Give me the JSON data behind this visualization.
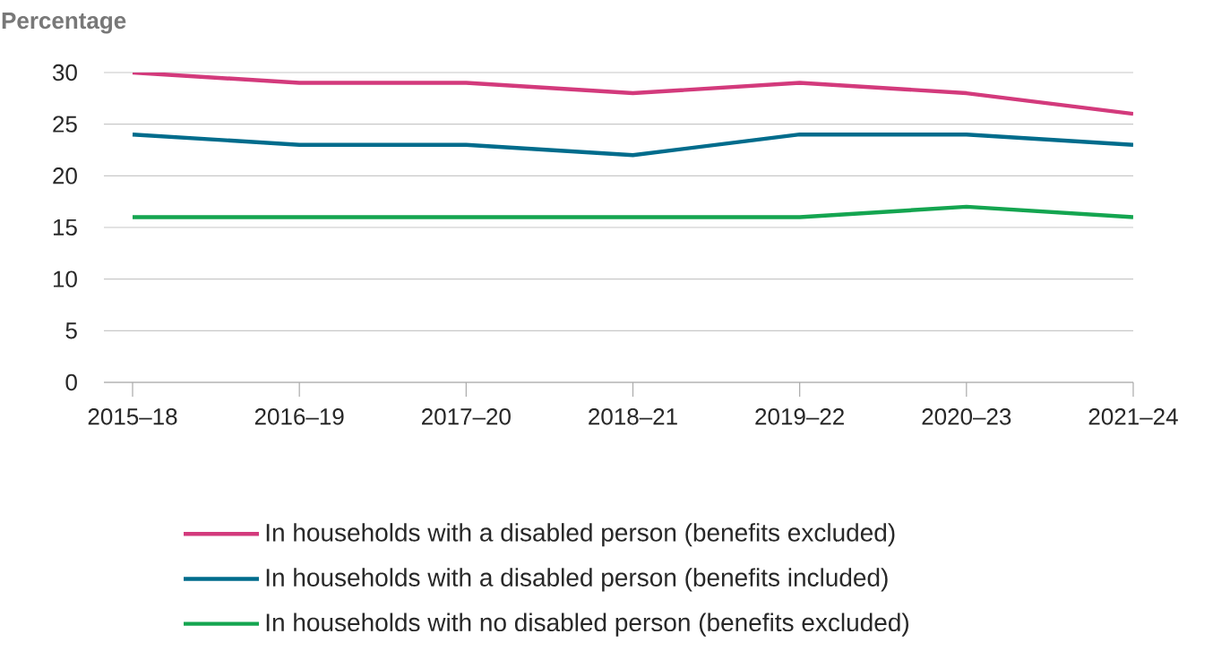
{
  "chart_data": {
    "type": "line",
    "ylabel": "Percentage",
    "categories": [
      "2015–18",
      "2016–19",
      "2017–20",
      "2018–21",
      "2019–22",
      "2020–23",
      "2021–24"
    ],
    "series": [
      {
        "name": "In households with a disabled person (benefits excluded)",
        "color": "#d33a7c",
        "values": [
          30,
          29,
          29,
          28,
          29,
          28,
          26
        ]
      },
      {
        "name": "In households with a disabled person (benefits included)",
        "color": "#006c8c",
        "values": [
          24,
          23,
          23,
          22,
          24,
          24,
          23
        ]
      },
      {
        "name": "In households with no disabled person (benefits excluded)",
        "color": "#14a550",
        "values": [
          16,
          16,
          16,
          16,
          16,
          17,
          16
        ]
      }
    ],
    "ylim": [
      0,
      30
    ],
    "yticks": [
      0,
      5,
      10,
      15,
      20,
      25,
      30
    ],
    "grid": "y",
    "legend": "bottom"
  }
}
